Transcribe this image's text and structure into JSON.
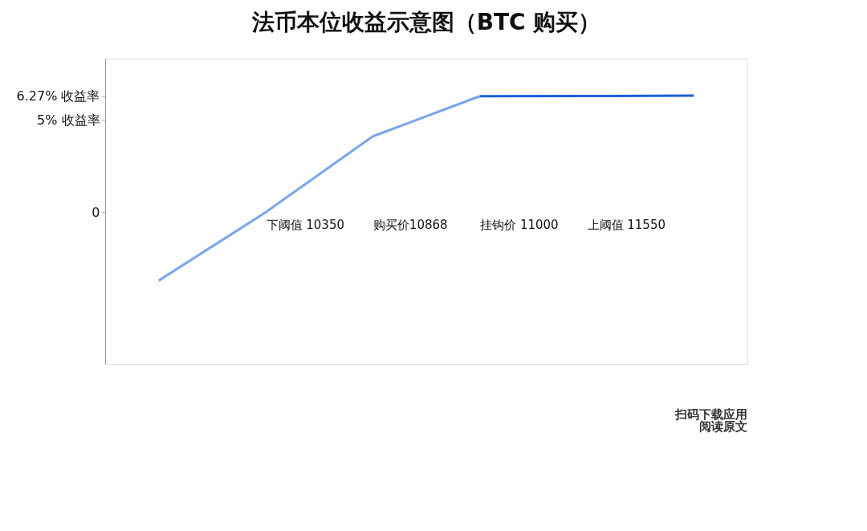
{
  "chart_data": {
    "type": "line",
    "title": "法币本位收益示意图（BTC 购买）",
    "categories": [
      null,
      "下阈值 10350",
      "购买价10868",
      "挂钩价 11000",
      "上阈值 11550",
      null
    ],
    "series": [
      {
        "color": "#7aa6ea",
        "values": [
          -3.7,
          0,
          4.1,
          6.27,
          null,
          null
        ]
      },
      {
        "color": "#1d5fd8",
        "values": [
          null,
          null,
          null,
          6.27,
          6.28,
          6.3
        ]
      }
    ],
    "ylim": [
      -8.2,
      8.3
    ],
    "yticks": [
      {
        "value": 0,
        "label": "0"
      },
      {
        "value": 5,
        "label": "5% 收益率"
      },
      {
        "value": 6.27,
        "label": "6.27% 收益率"
      }
    ],
    "annotations": [
      "扫码下载应用",
      "阅读原文"
    ],
    "grid": false,
    "marker": "none",
    "line_style": "solid"
  }
}
